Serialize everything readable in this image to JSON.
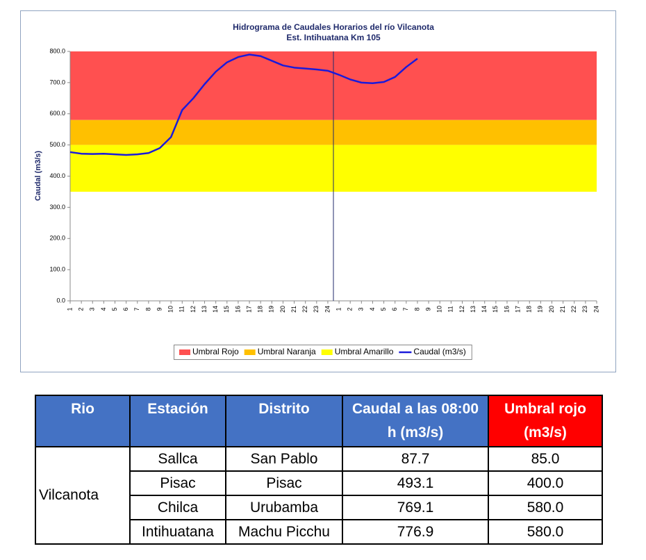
{
  "chart_data": {
    "type": "line",
    "title": "Hidrograma de Caudales Horarios del río Vilcanota",
    "subtitle": "Est. Intihuatana Km 105",
    "y_label": "Caudal (m3/s)",
    "categories": [
      "1",
      "2",
      "3",
      "4",
      "5",
      "6",
      "7",
      "8",
      "9",
      "10",
      "11",
      "12",
      "13",
      "14",
      "15",
      "16",
      "17",
      "18",
      "19",
      "20",
      "21",
      "22",
      "23",
      "24",
      "1",
      "2",
      "3",
      "4",
      "5",
      "6",
      "7",
      "8",
      "9",
      "10",
      "11",
      "12",
      "13",
      "14",
      "15",
      "16",
      "17",
      "18",
      "19",
      "20",
      "21",
      "22",
      "23",
      "24"
    ],
    "bands": [
      {
        "name": "Umbral Rojo",
        "color": "#ff5050",
        "from": 580,
        "to": 800
      },
      {
        "name": "Umbral Naranja",
        "color": "#ffc000",
        "from": 500,
        "to": 580
      },
      {
        "name": "Umbral Amarillo",
        "color": "#ffff00",
        "from": 350,
        "to": 500
      }
    ],
    "series": [
      {
        "name": "Caudal (m3/s)",
        "color": "#1a1adb",
        "values": [
          477,
          472,
          471,
          472,
          470,
          468,
          470,
          474,
          490,
          525,
          612,
          650,
          695,
          735,
          765,
          782,
          790,
          785,
          770,
          755,
          748,
          745,
          742,
          738,
          725,
          710,
          700,
          698,
          702,
          718,
          750,
          777,
          null,
          null,
          null,
          null,
          null,
          null,
          null,
          null,
          null,
          null,
          null,
          null,
          null,
          null,
          null,
          null
        ]
      }
    ],
    "ylim": [
      0,
      800
    ],
    "yticks": [
      {
        "value": 0,
        "label": "0.0"
      },
      {
        "value": 100,
        "label": "100.0"
      },
      {
        "value": 200,
        "label": "200.0"
      },
      {
        "value": 300,
        "label": "300.0"
      },
      {
        "value": 400,
        "label": "400.0"
      },
      {
        "value": 500,
        "label": "500.0"
      },
      {
        "value": 600,
        "label": "600.0"
      },
      {
        "value": 700,
        "label": "700.0"
      },
      {
        "value": 800,
        "label": "800.0"
      }
    ],
    "legend": "bottom"
  },
  "table": {
    "header": [
      "Rio",
      "Estación",
      "Distrito",
      "Caudal a las 08:00 h (m3/s)",
      "Umbral rojo (m3/s)"
    ],
    "river": "Vilcanota",
    "rows": [
      [
        "Sallca",
        "San Pablo",
        "87.7",
        "85.0"
      ],
      [
        "Pisac",
        "Pisac",
        "493.1",
        "400.0"
      ],
      [
        "Chilca",
        "Urubamba",
        "769.1",
        "580.0"
      ],
      [
        "Intihuatana",
        "Machu Picchu",
        "776.9",
        "580.0"
      ]
    ]
  }
}
